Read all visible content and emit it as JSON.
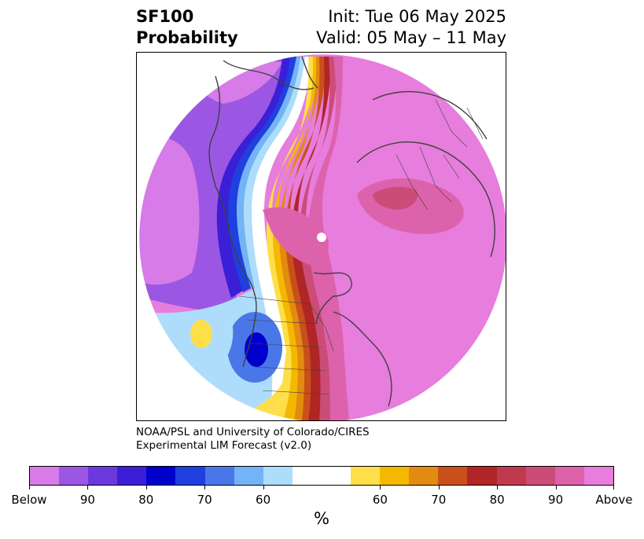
{
  "title": {
    "line1_left": "SF100",
    "line2_left": "Probability",
    "line1_right": "Init: Tue 06 May 2025",
    "line2_right": "Valid: 05 May – 11 May"
  },
  "credit": {
    "line1": "NOAA/PSL and University of Colorado/CIRES",
    "line2": "Experimental LIM Forecast (v2.0)"
  },
  "colorbar": {
    "unit_label": "%",
    "colors": [
      "#d67be8",
      "#9b57e3",
      "#6b39db",
      "#3a1fd6",
      "#0000cc",
      "#1f3fde",
      "#4a77e8",
      "#74b3f5",
      "#aeddfb",
      "#ffffff",
      "#ffffff",
      "#fedf4a",
      "#f5b800",
      "#e38a10",
      "#c9501a",
      "#b02525",
      "#c03a4e",
      "#cc4c78",
      "#dc62ac",
      "#e77ddc"
    ],
    "tick_labels": [
      "Below",
      "90",
      "80",
      "70",
      "60",
      "60",
      "70",
      "80",
      "90",
      "Above"
    ]
  },
  "map": {
    "colors": {
      "above_max": "#e77ddc",
      "above_90": "#dc62ac",
      "above_85": "#cc4c78",
      "above_80": "#b02525",
      "above_70": "#c9501a",
      "above_65": "#e38a10",
      "above_60": "#f5b800",
      "above_55": "#fedf4a",
      "below_55": "#aeddfb",
      "below_60": "#74b3f5",
      "below_65": "#4a77e8",
      "below_70": "#1f3fde",
      "below_75": "#0000cc",
      "below_80": "#3a1fd6",
      "below_85": "#6b39db",
      "below_90": "#9b57e3",
      "below_max": "#d67be8",
      "coastline": "#404040"
    }
  }
}
